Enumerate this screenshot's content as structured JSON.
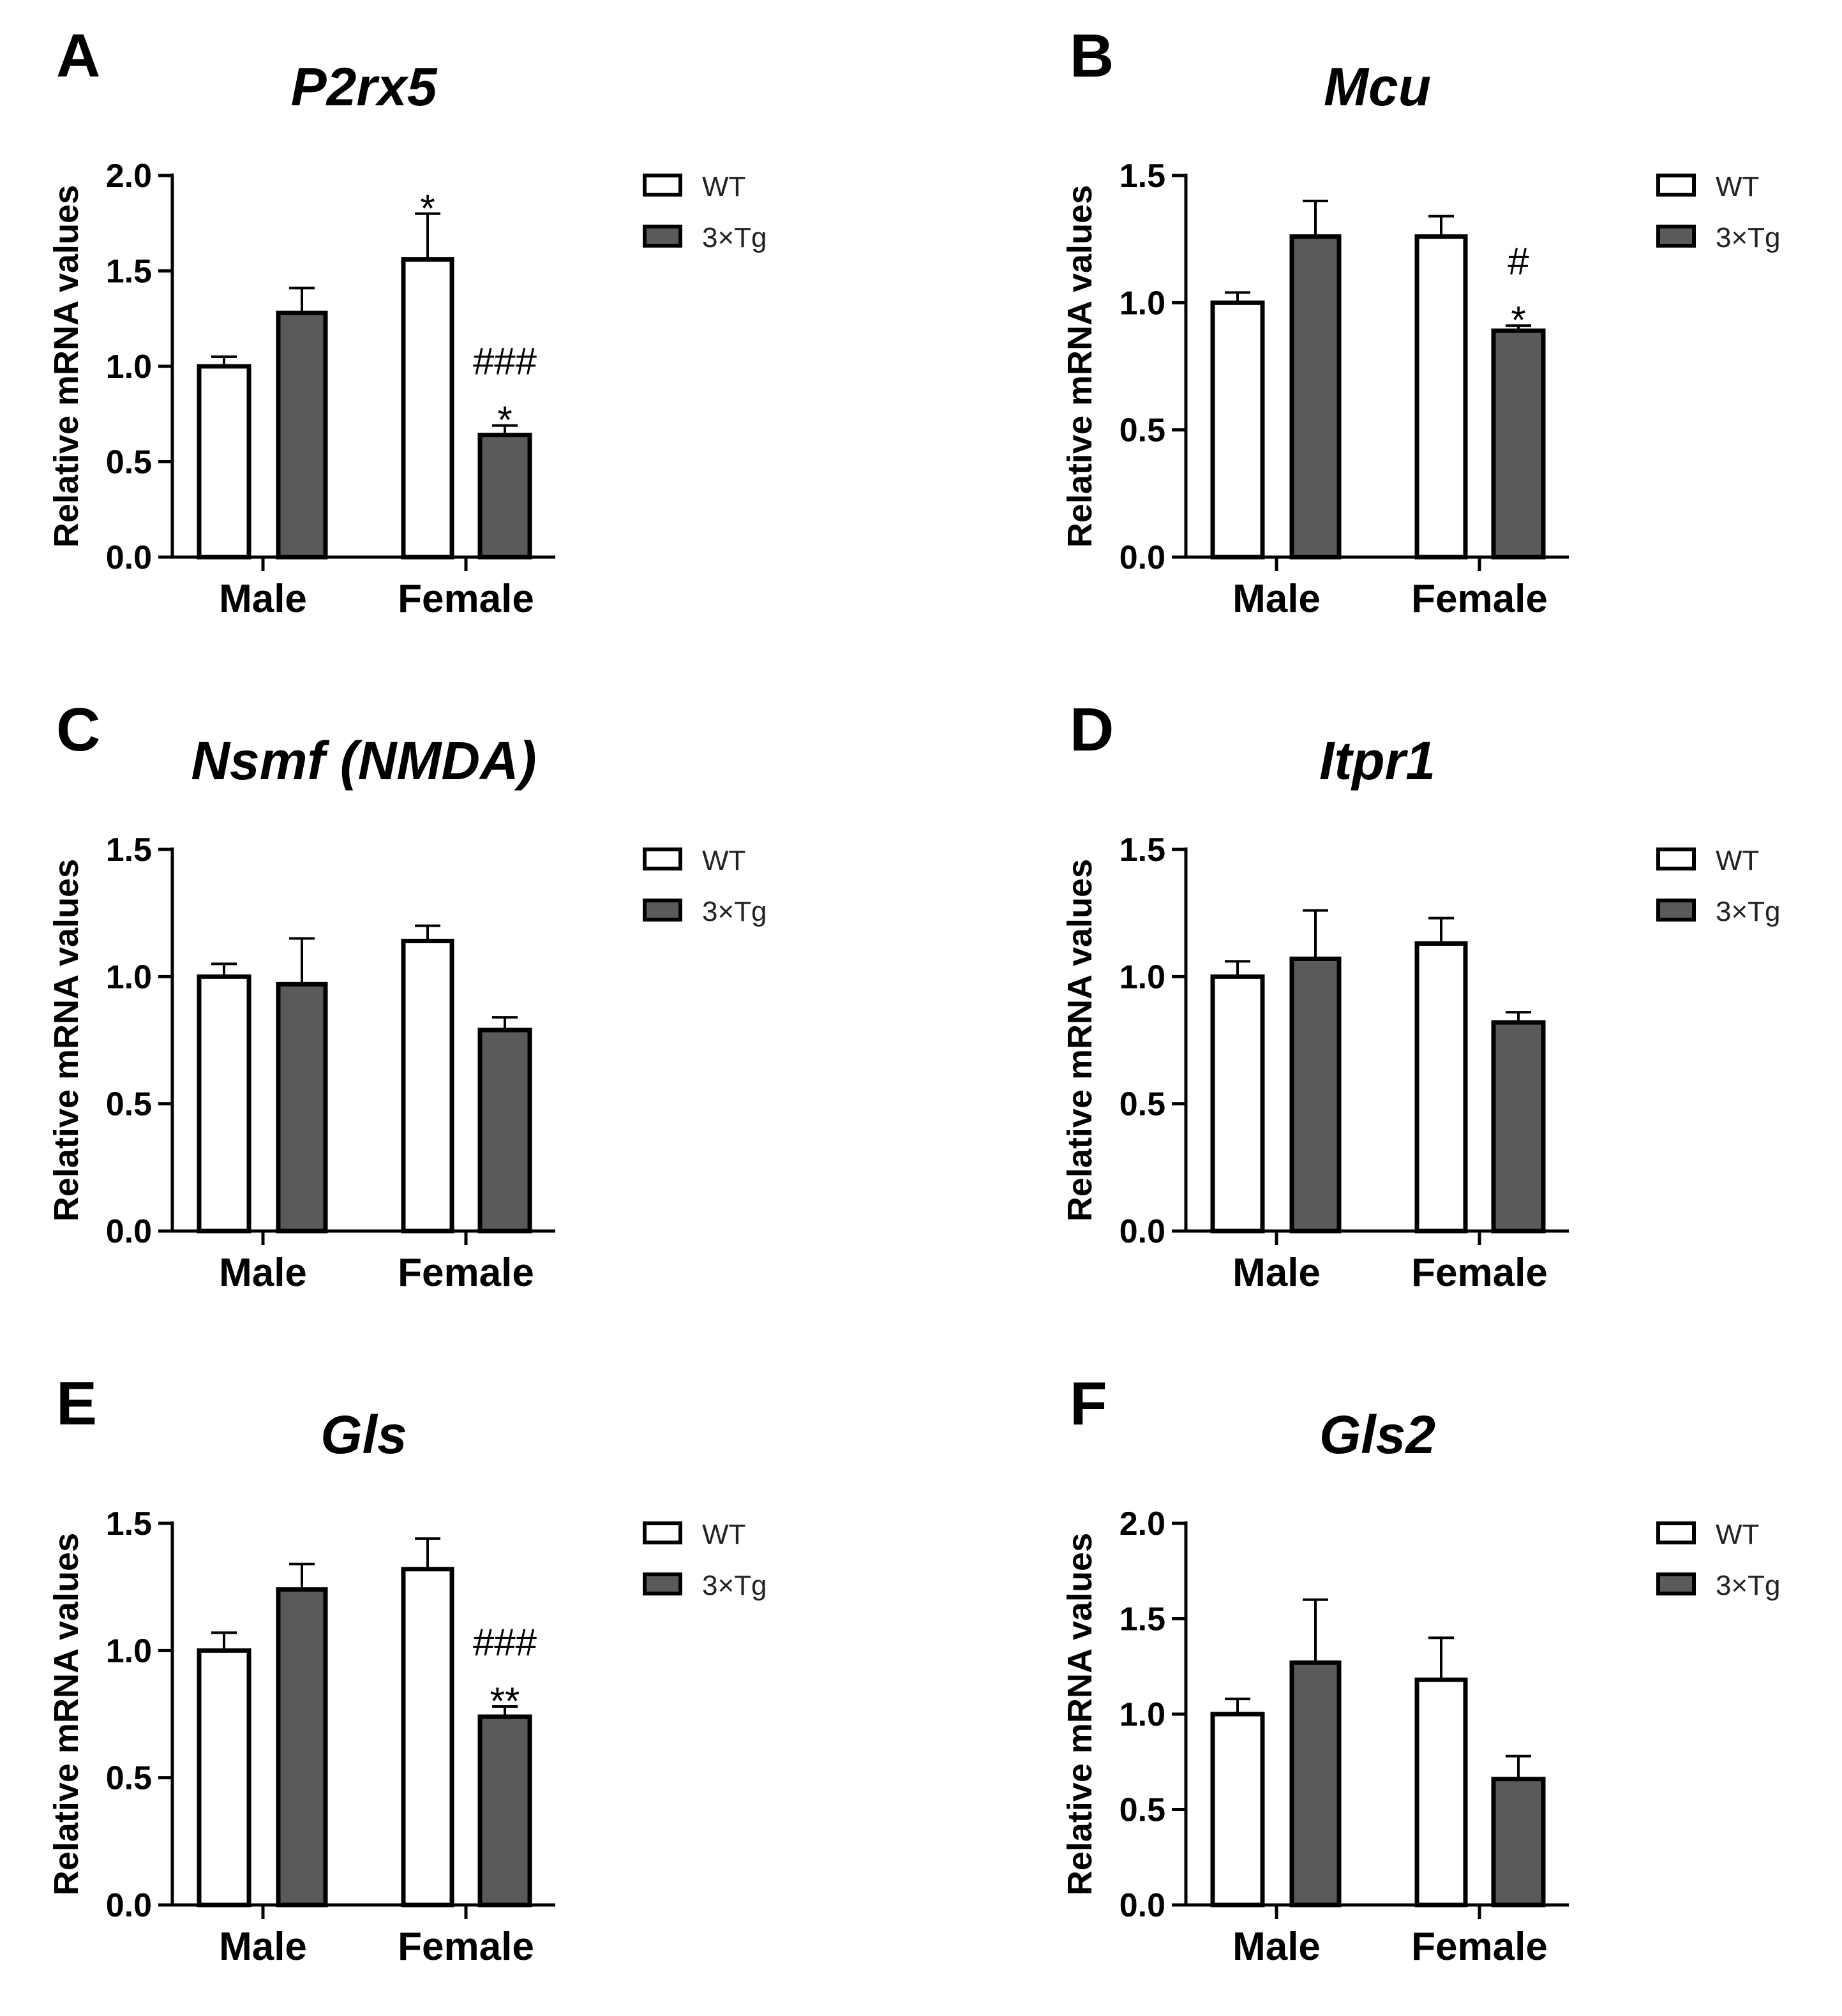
{
  "legend": {
    "wt_label": "WT",
    "tg_label": "3×Tg",
    "wt_color": "#ffffff",
    "tg_color": "#5a5a5a"
  },
  "chart_data": [
    {
      "type": "bar",
      "panel": "A",
      "title": "P2rx5",
      "ylabel": "Relative mRNA values",
      "xlabel": "",
      "categories": [
        "Male",
        "Female"
      ],
      "ylim": [
        0,
        2.0
      ],
      "yticks": [
        0.0,
        0.5,
        1.0,
        1.5,
        2.0
      ],
      "ytick_labels": [
        "0.0",
        "0.5",
        "1.0",
        "1.5",
        "2.0"
      ],
      "series": [
        {
          "name": "WT",
          "values": [
            1.0,
            1.56
          ],
          "errors": [
            0.05,
            0.24
          ]
        },
        {
          "name": "3×Tg",
          "values": [
            1.28,
            0.64
          ],
          "errors": [
            0.13,
            0.05
          ]
        }
      ],
      "annotations": [
        {
          "category": 1,
          "series": 0,
          "lines": [
            "*"
          ]
        },
        {
          "category": 1,
          "series": 1,
          "lines": [
            "###",
            "*"
          ]
        }
      ]
    },
    {
      "type": "bar",
      "panel": "B",
      "title": "Mcu",
      "ylabel": "Relative mRNA values",
      "xlabel": "",
      "categories": [
        "Male",
        "Female"
      ],
      "ylim": [
        0,
        1.5
      ],
      "yticks": [
        0.0,
        0.5,
        1.0,
        1.5
      ],
      "ytick_labels": [
        "0.0",
        "0.5",
        "1.0",
        "1.5"
      ],
      "series": [
        {
          "name": "WT",
          "values": [
            1.0,
            1.26
          ],
          "errors": [
            0.04,
            0.08
          ]
        },
        {
          "name": "3×Tg",
          "values": [
            1.26,
            0.89
          ],
          "errors": [
            0.14,
            0.02
          ]
        }
      ],
      "annotations": [
        {
          "category": 1,
          "series": 1,
          "lines": [
            "#",
            "*"
          ]
        }
      ]
    },
    {
      "type": "bar",
      "panel": "C",
      "title": "Nsmf (NMDA)",
      "ylabel": "Relative mRNA values",
      "xlabel": "",
      "categories": [
        "Male",
        "Female"
      ],
      "ylim": [
        0,
        1.5
      ],
      "yticks": [
        0.0,
        0.5,
        1.0,
        1.5
      ],
      "ytick_labels": [
        "0.0",
        "0.5",
        "1.0",
        "1.5"
      ],
      "series": [
        {
          "name": "WT",
          "values": [
            1.0,
            1.14
          ],
          "errors": [
            0.05,
            0.06
          ]
        },
        {
          "name": "3×Tg",
          "values": [
            0.97,
            0.79
          ],
          "errors": [
            0.18,
            0.05
          ]
        }
      ],
      "annotations": []
    },
    {
      "type": "bar",
      "panel": "D",
      "title": "Itpr1",
      "ylabel": "Relative mRNA values",
      "xlabel": "",
      "categories": [
        "Male",
        "Female"
      ],
      "ylim": [
        0,
        1.5
      ],
      "yticks": [
        0.0,
        0.5,
        1.0,
        1.5
      ],
      "ytick_labels": [
        "0.0",
        "0.5",
        "1.0",
        "1.5"
      ],
      "series": [
        {
          "name": "WT",
          "values": [
            1.0,
            1.13
          ],
          "errors": [
            0.06,
            0.1
          ]
        },
        {
          "name": "3×Tg",
          "values": [
            1.07,
            0.82
          ],
          "errors": [
            0.19,
            0.04
          ]
        }
      ],
      "annotations": []
    },
    {
      "type": "bar",
      "panel": "E",
      "title": "Gls",
      "ylabel": "Relative mRNA values",
      "xlabel": "",
      "categories": [
        "Male",
        "Female"
      ],
      "ylim": [
        0,
        1.5
      ],
      "yticks": [
        0.0,
        0.5,
        1.0,
        1.5
      ],
      "ytick_labels": [
        "0.0",
        "0.5",
        "1.0",
        "1.5"
      ],
      "series": [
        {
          "name": "WT",
          "values": [
            1.0,
            1.32
          ],
          "errors": [
            0.07,
            0.12
          ]
        },
        {
          "name": "3×Tg",
          "values": [
            1.24,
            0.74
          ],
          "errors": [
            0.1,
            0.04
          ]
        }
      ],
      "annotations": [
        {
          "category": 1,
          "series": 1,
          "lines": [
            "###",
            "**"
          ]
        }
      ]
    },
    {
      "type": "bar",
      "panel": "F",
      "title": "Gls2",
      "ylabel": "Relative mRNA values",
      "xlabel": "",
      "categories": [
        "Male",
        "Female"
      ],
      "ylim": [
        0,
        2.0
      ],
      "yticks": [
        0.0,
        0.5,
        1.0,
        1.5,
        2.0
      ],
      "ytick_labels": [
        "0.0",
        "0.5",
        "1.0",
        "1.5",
        "2.0"
      ],
      "series": [
        {
          "name": "WT",
          "values": [
            1.0,
            1.18
          ],
          "errors": [
            0.08,
            0.22
          ]
        },
        {
          "name": "3×Tg",
          "values": [
            1.27,
            0.66
          ],
          "errors": [
            0.33,
            0.12
          ]
        }
      ],
      "annotations": []
    }
  ]
}
